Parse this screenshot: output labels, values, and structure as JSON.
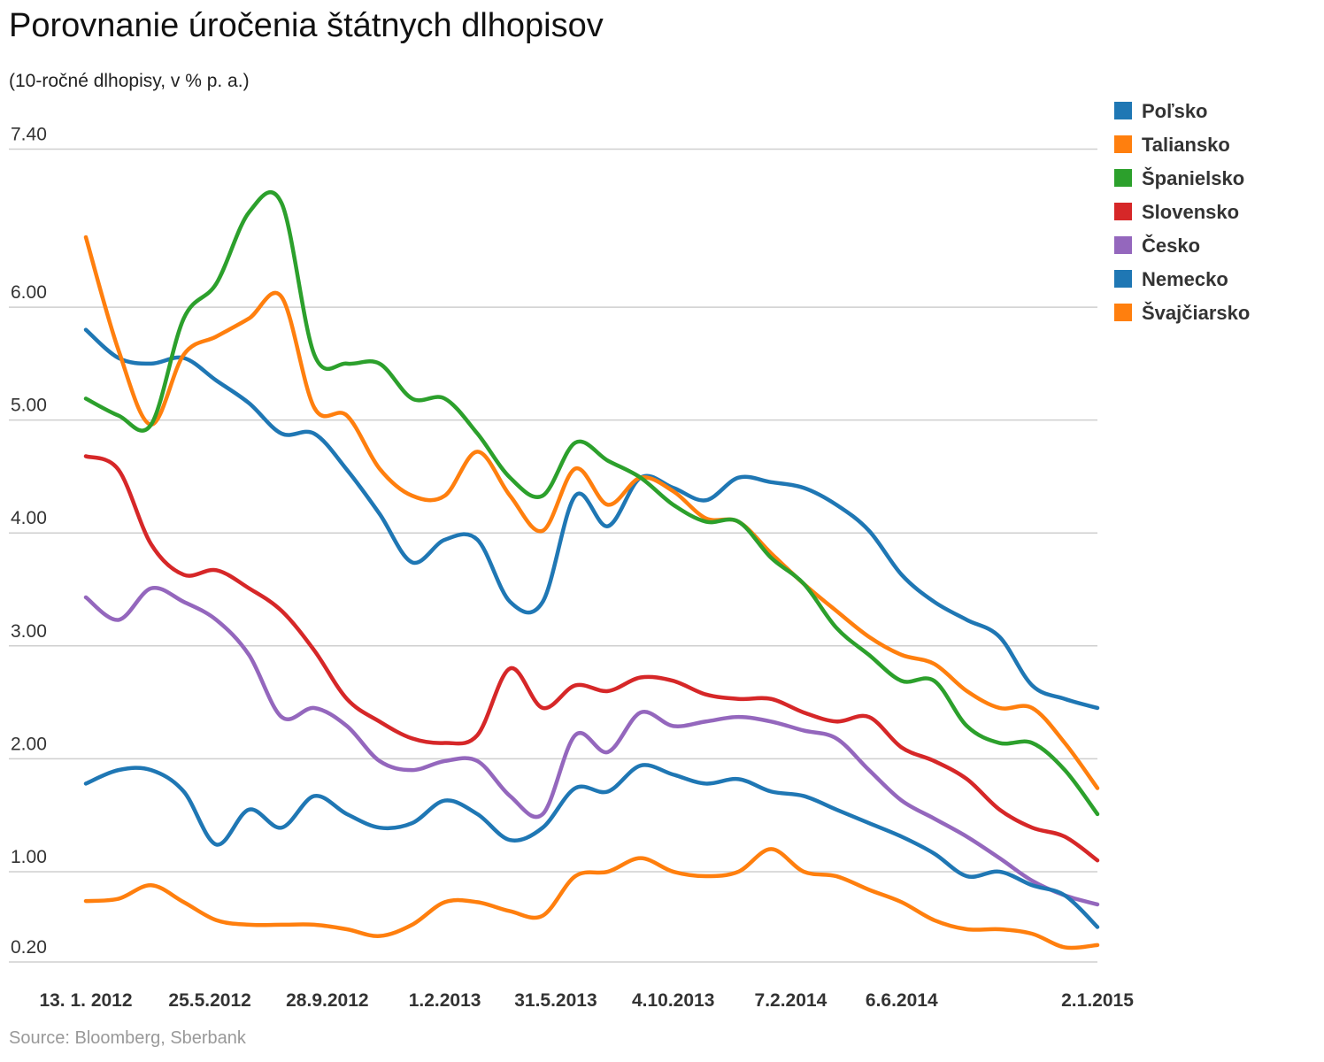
{
  "chart_data": {
    "type": "line",
    "title": "Porovnanie úročenia štátnych dlhopisov",
    "subtitle": "(10-ročné dlhopisy, v % p. a.)",
    "source": "Source: Bloomberg, Sberbank",
    "xlabel": "",
    "ylabel": "",
    "x_unit": "weeks since 13. 1. 2012",
    "x": [
      0,
      5,
      10,
      15,
      20,
      25,
      30,
      35,
      40,
      45,
      50,
      55,
      60,
      65,
      70,
      75,
      80,
      85,
      90,
      95,
      100,
      105,
      110,
      115,
      120,
      125,
      130,
      135,
      140,
      145,
      150,
      155
    ],
    "xlim": [
      0,
      155
    ],
    "ylim": [
      0.2,
      7.4
    ],
    "yticks": [
      {
        "v": 7.4,
        "label": "7.40"
      },
      {
        "v": 6,
        "label": "6.00"
      },
      {
        "v": 5,
        "label": "5.00"
      },
      {
        "v": 4,
        "label": "4.00"
      },
      {
        "v": 3,
        "label": "3.00"
      },
      {
        "v": 2,
        "label": "2.00"
      },
      {
        "v": 1,
        "label": "1.00"
      },
      {
        "v": 0.2,
        "label": "0.20"
      }
    ],
    "xticks": [
      {
        "v": 0,
        "label": "13. 1. 2012"
      },
      {
        "v": 19,
        "label": "25.5.2012"
      },
      {
        "v": 37,
        "label": "28.9.2012"
      },
      {
        "v": 55,
        "label": "1.2.2013"
      },
      {
        "v": 72,
        "label": "31.5.2013"
      },
      {
        "v": 90,
        "label": "4.10.2013"
      },
      {
        "v": 108,
        "label": "7.2.2014"
      },
      {
        "v": 125,
        "label": "6.6.2014"
      },
      {
        "v": 155,
        "label": "2.1.2015"
      }
    ],
    "grid": true,
    "legend_position": "right",
    "series": [
      {
        "name": "Poľsko",
        "color": "#1f77b4",
        "values": [
          5.8,
          5.55,
          5.5,
          5.55,
          5.35,
          5.15,
          4.88,
          4.88,
          4.56,
          4.17,
          3.74,
          3.94,
          3.94,
          3.39,
          3.39,
          4.33,
          4.06,
          4.49,
          4.4,
          4.29,
          4.49,
          4.45,
          4.4,
          4.25,
          4.02,
          3.63,
          3.39,
          3.23,
          3.08,
          2.65,
          2.53,
          2.45
        ]
      },
      {
        "name": "Taliansko",
        "color": "#ff7f0e",
        "values": [
          6.62,
          5.62,
          4.96,
          5.58,
          5.74,
          5.9,
          6.09,
          5.11,
          5.04,
          4.57,
          4.33,
          4.33,
          4.72,
          4.33,
          4.02,
          4.57,
          4.25,
          4.49,
          4.37,
          4.13,
          4.1,
          3.82,
          3.55,
          3.31,
          3.08,
          2.92,
          2.84,
          2.6,
          2.45,
          2.45,
          2.14,
          1.74
        ]
      },
      {
        "name": "Španielsko",
        "color": "#2ca02c",
        "values": [
          5.19,
          5.04,
          4.96,
          5.9,
          6.21,
          6.84,
          6.92,
          5.58,
          5.5,
          5.5,
          5.19,
          5.19,
          4.88,
          4.49,
          4.33,
          4.8,
          4.64,
          4.49,
          4.25,
          4.1,
          4.1,
          3.78,
          3.55,
          3.16,
          2.92,
          2.69,
          2.69,
          2.29,
          2.14,
          2.14,
          1.9,
          1.51
        ]
      },
      {
        "name": "Slovensko",
        "color": "#d62728",
        "values": [
          4.68,
          4.56,
          3.9,
          3.63,
          3.67,
          3.51,
          3.31,
          2.96,
          2.53,
          2.33,
          2.18,
          2.14,
          2.21,
          2.8,
          2.45,
          2.65,
          2.6,
          2.72,
          2.69,
          2.57,
          2.53,
          2.53,
          2.41,
          2.33,
          2.37,
          2.1,
          1.98,
          1.82,
          1.55,
          1.39,
          1.31,
          1.1
        ]
      },
      {
        "name": "Česko",
        "color": "#9467bd",
        "values": [
          3.43,
          3.23,
          3.51,
          3.39,
          3.23,
          2.92,
          2.37,
          2.45,
          2.29,
          1.98,
          1.9,
          1.98,
          1.98,
          1.67,
          1.51,
          2.21,
          2.06,
          2.41,
          2.29,
          2.33,
          2.37,
          2.33,
          2.25,
          2.18,
          1.9,
          1.63,
          1.47,
          1.31,
          1.12,
          0.92,
          0.79,
          0.71
        ]
      },
      {
        "name": "Nemecko",
        "color": "#1f77b4",
        "values": [
          1.78,
          1.9,
          1.9,
          1.71,
          1.24,
          1.55,
          1.39,
          1.67,
          1.51,
          1.39,
          1.43,
          1.63,
          1.51,
          1.28,
          1.39,
          1.74,
          1.71,
          1.94,
          1.86,
          1.78,
          1.82,
          1.71,
          1.67,
          1.55,
          1.43,
          1.31,
          1.16,
          0.96,
          1.0,
          0.88,
          0.79,
          0.51
        ]
      },
      {
        "name": "Švajčiarsko",
        "color": "#ff7f0e",
        "values": [
          0.74,
          0.76,
          0.88,
          0.73,
          0.57,
          0.53,
          0.53,
          0.53,
          0.49,
          0.43,
          0.53,
          0.73,
          0.73,
          0.65,
          0.61,
          0.96,
          1.0,
          1.12,
          1.0,
          0.96,
          1.0,
          1.2,
          1.0,
          0.96,
          0.84,
          0.73,
          0.57,
          0.49,
          0.49,
          0.45,
          0.33,
          0.35
        ]
      }
    ]
  }
}
